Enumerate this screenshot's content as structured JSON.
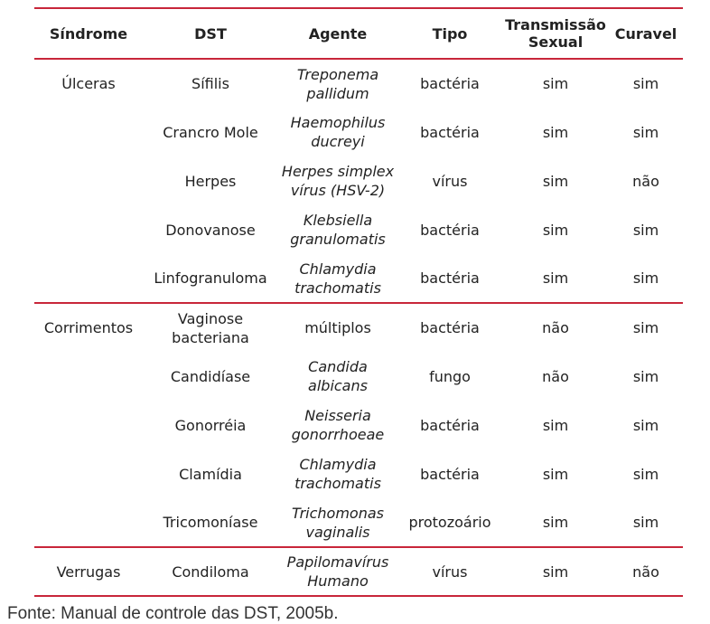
{
  "table": {
    "headers": {
      "sindrome": "Síndrome",
      "dst": "DST",
      "agente": "Agente",
      "tipo": "Tipo",
      "transmissao_line1": "Transmissão",
      "transmissao_line2": "Sexual",
      "curavel": "Curavel"
    },
    "groups": [
      {
        "sindrome": "Úlceras",
        "rows": [
          {
            "dst": "Sífilis",
            "dst2": "",
            "agente1": "Treponema",
            "agente2": "pallidum",
            "tipo": "bactéria",
            "transmissao": "sim",
            "curavel": "sim"
          },
          {
            "dst": "Crancro Mole",
            "dst2": "",
            "agente1": "Haemophilus",
            "agente2": "ducreyi",
            "tipo": "bactéria",
            "transmissao": "sim",
            "curavel": "sim"
          },
          {
            "dst": "Herpes",
            "dst2": "",
            "agente1": "Herpes simplex",
            "agente2": "vírus (HSV-2)",
            "tipo": "vírus",
            "transmissao": "sim",
            "curavel": "não"
          },
          {
            "dst": "Donovanose",
            "dst2": "",
            "agente1": "Klebsiella",
            "agente2": "granulomatis",
            "tipo": "bactéria",
            "transmissao": "sim",
            "curavel": "sim"
          },
          {
            "dst": "Linfogranuloma",
            "dst2": "",
            "agente1": "Chlamydia",
            "agente2": "trachomatis",
            "tipo": "bactéria",
            "transmissao": "sim",
            "curavel": "sim"
          }
        ]
      },
      {
        "sindrome": "Corrimentos",
        "rows": [
          {
            "dst": "Vaginose",
            "dst2": "bacteriana",
            "agente1": "múltiplos",
            "agente2": "",
            "tipo": "bactéria",
            "transmissao": "não",
            "curavel": "sim"
          },
          {
            "dst": "Candidíase",
            "dst2": "",
            "agente1": "Candida",
            "agente2": "albicans",
            "tipo": "fungo",
            "transmissao": "não",
            "curavel": "sim"
          },
          {
            "dst": "Gonorréia",
            "dst2": "",
            "agente1": "Neisseria",
            "agente2": "gonorrhoeae",
            "tipo": "bactéria",
            "transmissao": "sim",
            "curavel": "sim"
          },
          {
            "dst": "Clamídia",
            "dst2": "",
            "agente1": "Chlamydia",
            "agente2": "trachomatis",
            "tipo": "bactéria",
            "transmissao": "sim",
            "curavel": "sim"
          },
          {
            "dst": "Tricomoníase",
            "dst2": "",
            "agente1": "Trichomonas",
            "agente2": "vaginalis",
            "tipo": "protozoário",
            "transmissao": "sim",
            "curavel": "sim"
          }
        ]
      },
      {
        "sindrome": "Verrugas",
        "rows": [
          {
            "dst": "Condiloma",
            "dst2": "",
            "agente1": "Papilomavírus",
            "agente2": "Humano",
            "tipo": "vírus",
            "transmissao": "sim",
            "curavel": "não"
          }
        ]
      }
    ]
  },
  "caption": "Fonte: Manual de controle das DST, 2005b.",
  "colors": {
    "rule": "#c8263a",
    "text": "#222222"
  }
}
